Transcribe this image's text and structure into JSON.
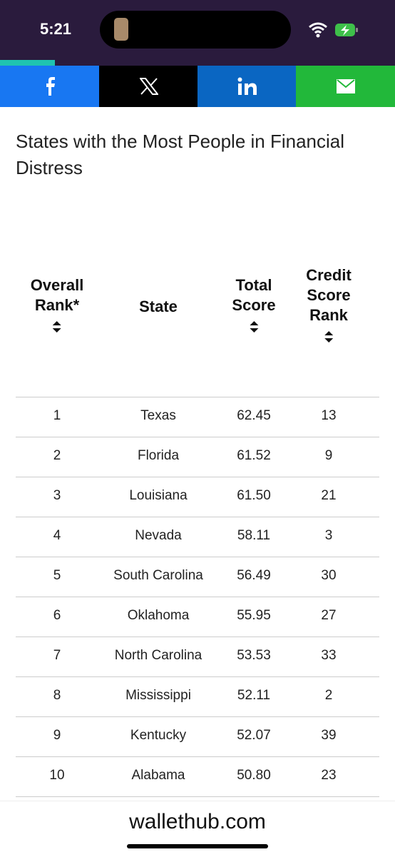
{
  "status_bar": {
    "time": "5:21"
  },
  "title": "States with the Most People in Financial Distress",
  "table": {
    "headers": [
      "Overall Rank*",
      "State",
      "Total Score",
      "Credit Score Rank"
    ],
    "rows": [
      [
        "1",
        "Texas",
        "62.45",
        "13"
      ],
      [
        "2",
        "Florida",
        "61.52",
        "9"
      ],
      [
        "3",
        "Louisiana",
        "61.50",
        "21"
      ],
      [
        "4",
        "Nevada",
        "58.11",
        "3"
      ],
      [
        "5",
        "South Carolina",
        "56.49",
        "30"
      ],
      [
        "6",
        "Oklahoma",
        "55.95",
        "27"
      ],
      [
        "7",
        "North Carolina",
        "53.53",
        "33"
      ],
      [
        "8",
        "Mississippi",
        "52.11",
        "2"
      ],
      [
        "9",
        "Kentucky",
        "52.07",
        "39"
      ],
      [
        "10",
        "Alabama",
        "50.80",
        "23"
      ]
    ]
  },
  "footer": {
    "site": "wallethub.com"
  }
}
